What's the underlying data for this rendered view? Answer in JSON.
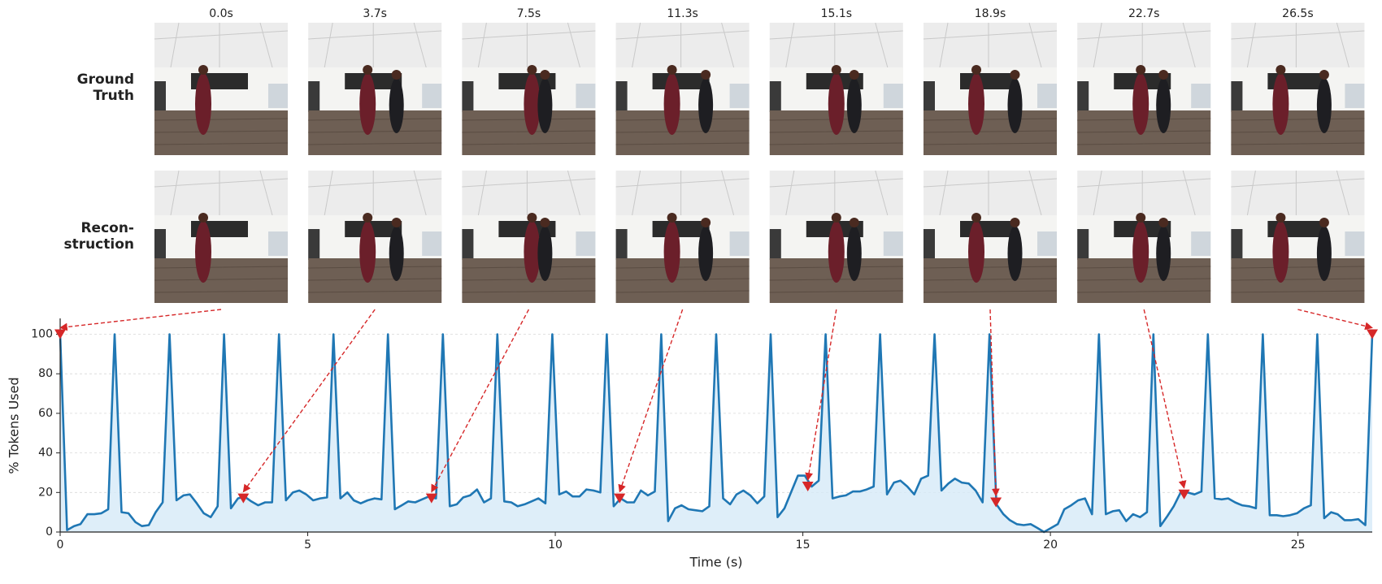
{
  "frames": {
    "times": [
      "0.0s",
      "3.7s",
      "7.5s",
      "11.3s",
      "15.1s",
      "18.9s",
      "22.7s",
      "26.5s"
    ]
  },
  "row_labels": [
    [
      "Ground",
      "Truth"
    ],
    [
      "Recon-",
      "struction"
    ]
  ],
  "chart_data": {
    "type": "line",
    "x_label": "Time (s)",
    "y_label": "% Tokens Used",
    "xlim": [
      0,
      26.5
    ],
    "ylim": [
      0,
      108
    ],
    "xticks": [
      0,
      5,
      10,
      15,
      20,
      25
    ],
    "yticks": [
      0,
      20,
      40,
      60,
      80,
      100
    ],
    "grid": true,
    "fill": true,
    "x": [
      0,
      0.14,
      0.28,
      0.41,
      0.55,
      0.69,
      0.83,
      0.97,
      1.1,
      1.24,
      1.38,
      1.52,
      1.65,
      1.79,
      1.93,
      2.07,
      2.21,
      2.35,
      2.49,
      2.62,
      2.76,
      2.9,
      3.04,
      3.18,
      3.31,
      3.45,
      3.59,
      3.72,
      3.86,
      4.0,
      4.14,
      4.28,
      4.42,
      4.56,
      4.7,
      4.83,
      4.97,
      5.11,
      5.25,
      5.39,
      5.52,
      5.66,
      5.8,
      5.93,
      6.07,
      6.21,
      6.35,
      6.49,
      6.62,
      6.76,
      6.9,
      7.03,
      7.17,
      7.31,
      7.45,
      7.59,
      7.73,
      7.87,
      8.01,
      8.14,
      8.28,
      8.42,
      8.56,
      8.7,
      8.83,
      8.97,
      9.11,
      9.24,
      9.38,
      9.52,
      9.66,
      9.8,
      9.94,
      10.08,
      10.22,
      10.35,
      10.49,
      10.63,
      10.77,
      10.91,
      11.04,
      11.18,
      11.32,
      11.45,
      11.59,
      11.73,
      11.87,
      12.01,
      12.14,
      12.28,
      12.42,
      12.55,
      12.69,
      12.83,
      12.97,
      13.11,
      13.25,
      13.39,
      13.53,
      13.66,
      13.8,
      13.94,
      14.08,
      14.22,
      14.35,
      14.49,
      14.63,
      14.76,
      14.9,
      15.04,
      15.18,
      15.32,
      15.46,
      15.6,
      15.74,
      15.87,
      16.01,
      16.15,
      16.29,
      16.43,
      16.56,
      16.7,
      16.84,
      16.97,
      17.11,
      17.25,
      17.39,
      17.53,
      17.66,
      17.8,
      17.94,
      18.07,
      18.21,
      18.35,
      18.49,
      18.63,
      18.77,
      18.91,
      19.05,
      19.18,
      19.32,
      19.46,
      19.6,
      19.74,
      19.87,
      20.01,
      20.15,
      20.28,
      20.42,
      20.56,
      20.7,
      20.84,
      20.98,
      21.12,
      21.26,
      21.39,
      21.53,
      21.67,
      21.81,
      21.95,
      22.08,
      22.22,
      22.36,
      22.49,
      22.63,
      22.77,
      22.91,
      23.05,
      23.18,
      23.32,
      23.46,
      23.59,
      23.73,
      23.87,
      24.01,
      24.15,
      24.29,
      24.43,
      24.57,
      24.7,
      24.84,
      24.98,
      25.12,
      25.26,
      25.39,
      25.53,
      25.67,
      25.8,
      25.94,
      26.08,
      26.22,
      26.36,
      26.5
    ],
    "series": [
      {
        "color": "#1f77b4",
        "fill_color": "#d6eaf8",
        "values": [
          100,
          1,
          3,
          4,
          9,
          9,
          9.5,
          11.5,
          100,
          10,
          9.5,
          5,
          3,
          3.5,
          10,
          15,
          100,
          16,
          18.5,
          19,
          14.5,
          9.5,
          7.5,
          13,
          100,
          12,
          17,
          18,
          15.5,
          13.5,
          15,
          15,
          100,
          16,
          20,
          21,
          19,
          16,
          17,
          17.5,
          100,
          17,
          20,
          16,
          14.5,
          16,
          17,
          16.5,
          100,
          11.5,
          13.5,
          15.5,
          15,
          16.5,
          18,
          17,
          100,
          13,
          14,
          17.5,
          18.5,
          21.5,
          15,
          17,
          100,
          15.5,
          15,
          13,
          14,
          15.5,
          17,
          14.5,
          100,
          19,
          20.5,
          18,
          18,
          21.5,
          21,
          20,
          100,
          13,
          17,
          15,
          15,
          21,
          18.5,
          20.5,
          100,
          5.5,
          12,
          13.5,
          11.5,
          11,
          10.5,
          13,
          100,
          17,
          14,
          19,
          21,
          18.5,
          14.5,
          18,
          100,
          7.5,
          12,
          20,
          28.5,
          28.5,
          23,
          26,
          100,
          17,
          18,
          18.5,
          20.5,
          20.5,
          21.5,
          23,
          100,
          19,
          25,
          26,
          23,
          19,
          27,
          28.5,
          100,
          21,
          24.5,
          27,
          25,
          24.5,
          21,
          15,
          100,
          14,
          9,
          6,
          4,
          3.5,
          4,
          2,
          0,
          2,
          4,
          11.5,
          13.5,
          16,
          17,
          9,
          100,
          9,
          10.5,
          11,
          5.5,
          9,
          7.5,
          10,
          100,
          3,
          8,
          13,
          20,
          20,
          19,
          20.5,
          100,
          17,
          16.5,
          17,
          15,
          13.5,
          13,
          12,
          100,
          8.5,
          8.5,
          8,
          8.5,
          9.5,
          12,
          13.5,
          100,
          7,
          10,
          9,
          6,
          6,
          6.5,
          3.5,
          100
        ]
      }
    ],
    "markers": {
      "color": "#d62728",
      "x": [
        0,
        3.7,
        7.5,
        11.3,
        15.1,
        18.9,
        22.7,
        26.5
      ],
      "y": [
        100,
        17,
        17,
        17,
        23,
        15,
        19,
        100
      ]
    }
  }
}
